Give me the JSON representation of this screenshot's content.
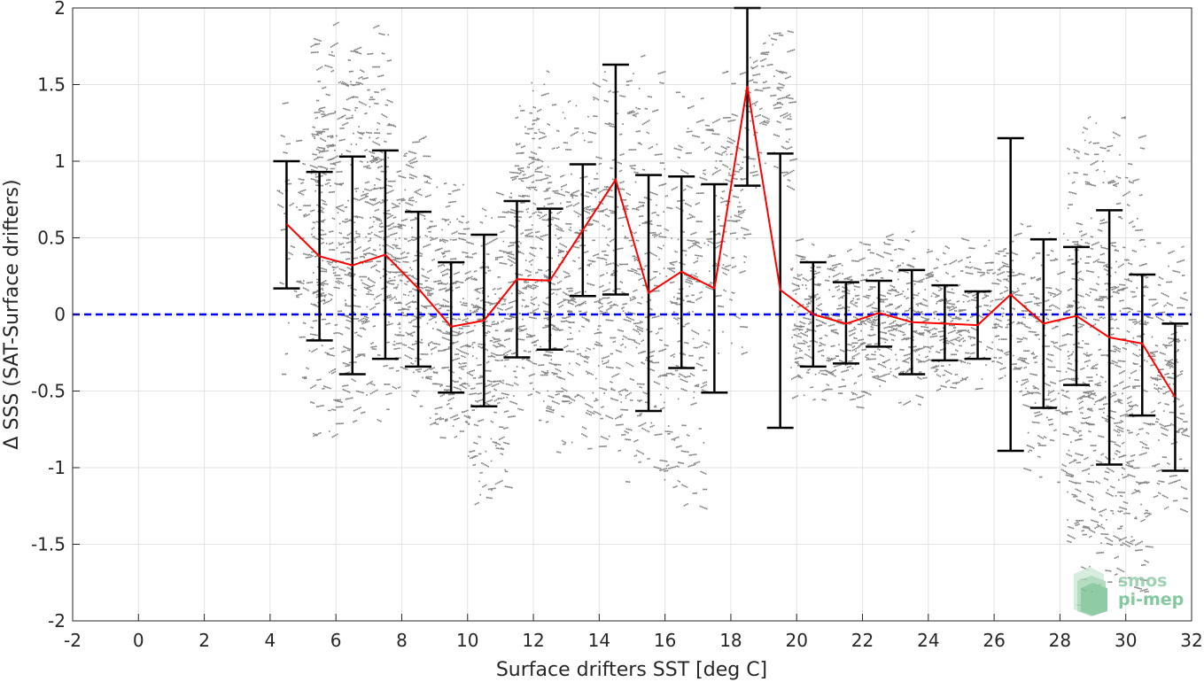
{
  "chart_data": {
    "type": "scatter",
    "title": "",
    "xlabel": "Surface drifters SST [deg C]",
    "ylabel": "Δ SSS (SAT-Surface drifters)",
    "xlim": [
      -2,
      32
    ],
    "ylim": [
      -2,
      2
    ],
    "grid": true,
    "x_ticks": [
      -2,
      0,
      2,
      4,
      6,
      8,
      10,
      12,
      14,
      16,
      18,
      20,
      22,
      24,
      26,
      28,
      30,
      32
    ],
    "y_ticks": [
      -2,
      -1.5,
      -1,
      -0.5,
      0,
      0.5,
      1,
      1.5,
      2
    ],
    "reference_line": {
      "y": 0,
      "style": "dashed",
      "color": "#0000ff"
    },
    "series": [
      {
        "kind": "mean_with_error",
        "line_color": "#ff0000",
        "error_color": "#000000",
        "x": [
          4.5,
          5.5,
          6.5,
          7.5,
          8.5,
          9.5,
          10.5,
          11.5,
          12.5,
          13.5,
          14.5,
          15.5,
          16.5,
          17.5,
          18.5,
          19.5,
          20.5,
          21.5,
          22.5,
          23.5,
          24.5,
          25.5,
          26.5,
          27.5,
          28.5,
          29.5,
          30.5,
          31.5
        ],
        "y": [
          0.59,
          0.38,
          0.32,
          0.39,
          0.17,
          -0.08,
          -0.04,
          0.23,
          0.22,
          0.55,
          0.88,
          0.14,
          0.28,
          0.17,
          1.49,
          0.16,
          0.0,
          -0.06,
          0.01,
          -0.05,
          -0.06,
          -0.07,
          0.13,
          -0.06,
          -0.01,
          -0.15,
          -0.19,
          -0.54
        ],
        "upper": [
          1.0,
          0.93,
          1.03,
          1.07,
          0.67,
          0.34,
          0.52,
          0.74,
          0.69,
          0.98,
          1.63,
          0.91,
          0.9,
          0.85,
          2.0,
          1.05,
          0.34,
          0.21,
          0.22,
          0.29,
          0.19,
          0.15,
          1.15,
          0.49,
          0.44,
          0.68,
          0.26,
          -0.06
        ],
        "lower": [
          0.17,
          -0.17,
          -0.39,
          -0.29,
          -0.34,
          -0.51,
          -0.6,
          -0.28,
          -0.23,
          0.12,
          0.13,
          -0.63,
          -0.35,
          -0.51,
          0.84,
          -0.74,
          -0.34,
          -0.32,
          -0.21,
          -0.39,
          -0.3,
          -0.29,
          -0.89,
          -0.61,
          -0.46,
          -0.98,
          -0.66,
          -1.02
        ]
      },
      {
        "kind": "scatter_clusters",
        "color": "#808080",
        "note_free": true,
        "clusters": [
          {
            "x": [
              4.2,
              5.2
            ],
            "y": [
              -0.5,
              1.4
            ],
            "n": 50
          },
          {
            "x": [
              5.2,
              6.4
            ],
            "y": [
              -0.8,
              1.9
            ],
            "n": 260
          },
          {
            "x": [
              6.4,
              7.6
            ],
            "y": [
              -0.7,
              1.9
            ],
            "n": 240
          },
          {
            "x": [
              7.6,
              8.8
            ],
            "y": [
              -0.6,
              1.2
            ],
            "n": 200
          },
          {
            "x": [
              8.8,
              10.0
            ],
            "y": [
              -0.9,
              0.9
            ],
            "n": 200
          },
          {
            "x": [
              10.0,
              11.2
            ],
            "y": [
              -1.25,
              0.8
            ],
            "n": 200
          },
          {
            "x": [
              11.2,
              12.4
            ],
            "y": [
              -0.7,
              1.6
            ],
            "n": 220
          },
          {
            "x": [
              12.4,
              13.6
            ],
            "y": [
              -0.9,
              1.4
            ],
            "n": 200
          },
          {
            "x": [
              13.6,
              14.8
            ],
            "y": [
              -1.0,
              1.6
            ],
            "n": 200
          },
          {
            "x": [
              14.8,
              16.0
            ],
            "y": [
              -1.1,
              1.7
            ],
            "n": 180
          },
          {
            "x": [
              16.0,
              17.2
            ],
            "y": [
              -1.3,
              1.5
            ],
            "n": 160
          },
          {
            "x": [
              17.2,
              18.4
            ],
            "y": [
              -0.3,
              1.6
            ],
            "n": 120
          },
          {
            "x": [
              18.4,
              19.8
            ],
            "y": [
              0.8,
              1.9
            ],
            "n": 90
          },
          {
            "x": [
              19.8,
              21.2
            ],
            "y": [
              -0.6,
              0.5
            ],
            "n": 160
          },
          {
            "x": [
              21.2,
              22.6
            ],
            "y": [
              -0.6,
              0.5
            ],
            "n": 160
          },
          {
            "x": [
              22.6,
              24.0
            ],
            "y": [
              -0.6,
              0.6
            ],
            "n": 160
          },
          {
            "x": [
              24.0,
              25.4
            ],
            "y": [
              -0.5,
              0.5
            ],
            "n": 140
          },
          {
            "x": [
              25.4,
              26.8
            ],
            "y": [
              -0.5,
              0.6
            ],
            "n": 110
          },
          {
            "x": [
              26.8,
              28.2
            ],
            "y": [
              -1.1,
              0.6
            ],
            "n": 150
          },
          {
            "x": [
              28.2,
              29.4
            ],
            "y": [
              -1.9,
              1.3
            ],
            "n": 260
          },
          {
            "x": [
              29.4,
              30.6
            ],
            "y": [
              -1.9,
              1.3
            ],
            "n": 260
          },
          {
            "x": [
              30.6,
              31.8
            ],
            "y": [
              -1.3,
              0.5
            ],
            "n": 140
          }
        ]
      }
    ],
    "watermark": {
      "line1": "smos",
      "line2": "pi-mep",
      "color": "#6fbf8f"
    }
  }
}
